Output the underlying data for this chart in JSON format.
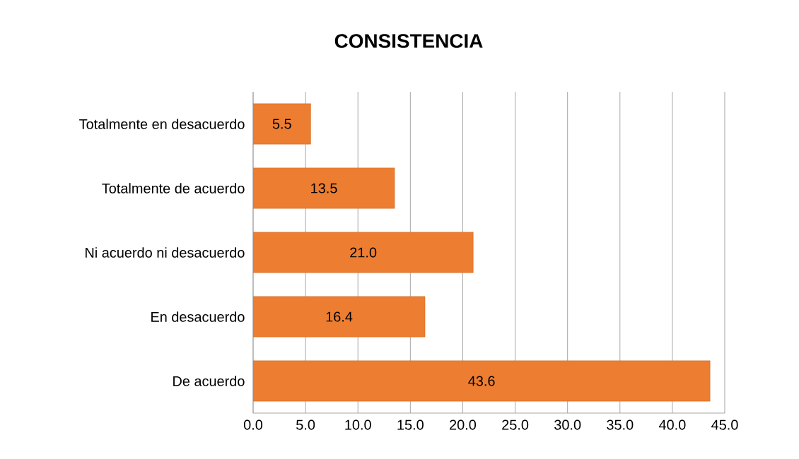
{
  "chart_data": {
    "type": "bar",
    "orientation": "horizontal",
    "title": "CONSISTENCIA",
    "categories": [
      "Totalmente en desacuerdo",
      "Totalmente de acuerdo",
      "Ni acuerdo ni desacuerdo",
      "En desacuerdo",
      "De acuerdo"
    ],
    "values": [
      5.5,
      13.5,
      21.0,
      16.4,
      43.6
    ],
    "value_labels": [
      "5.5",
      "13.5",
      "21.0",
      "16.4",
      "43.6"
    ],
    "color": "#ed7d31",
    "xlim": [
      0,
      45
    ],
    "xticks": [
      {
        "value": 0,
        "label": "0.0"
      },
      {
        "value": 5,
        "label": "5.0"
      },
      {
        "value": 10,
        "label": "10.0"
      },
      {
        "value": 15,
        "label": "15.0"
      },
      {
        "value": 20,
        "label": "20.0"
      },
      {
        "value": 25,
        "label": "25.0"
      },
      {
        "value": 30,
        "label": "30.0"
      },
      {
        "value": 35,
        "label": "35.0"
      },
      {
        "value": 40,
        "label": "40.0"
      },
      {
        "value": 45,
        "label": "45.0"
      }
    ],
    "grid": "x"
  }
}
